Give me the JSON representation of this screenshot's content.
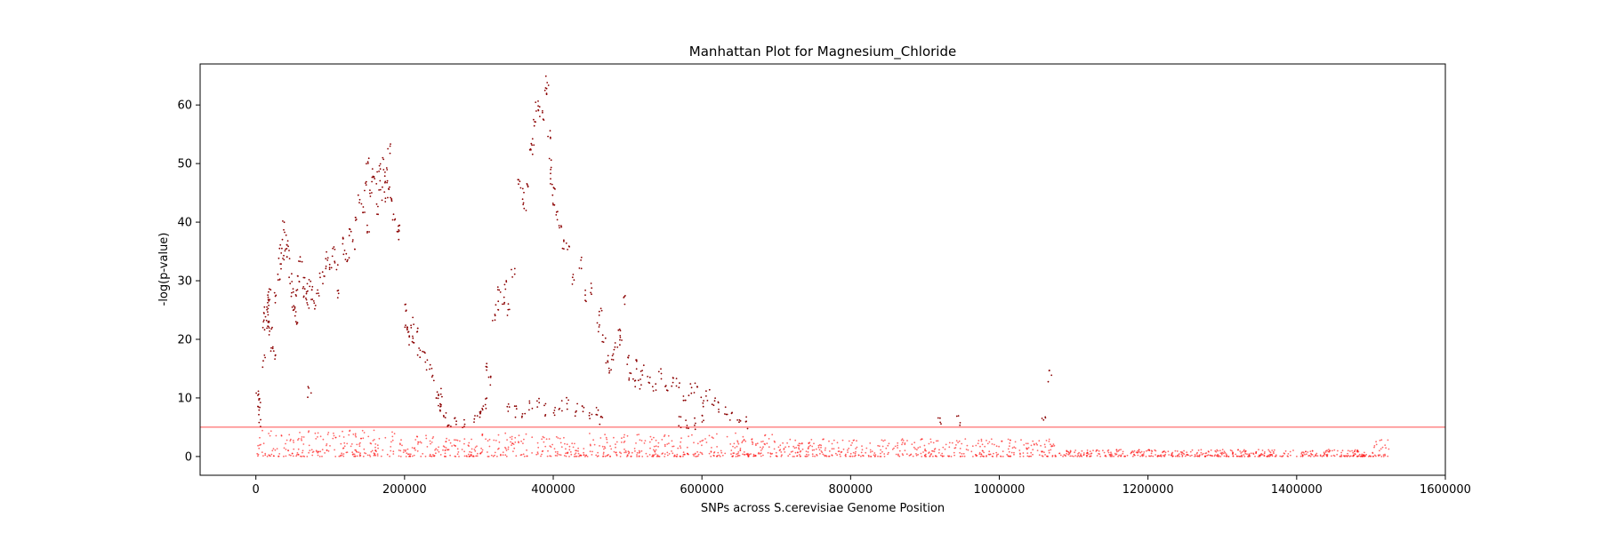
{
  "chart_data": {
    "type": "scatter",
    "title": "Manhattan Plot for Magnesium_Chloride",
    "xlabel": "SNPs across S.cerevisiae Genome Position",
    "ylabel": "-log(p-value)",
    "xlim": [
      -75000,
      1600000
    ],
    "ylim": [
      -3.2,
      67
    ],
    "xticks": [
      0,
      200000,
      400000,
      600000,
      800000,
      1000000,
      1200000,
      1400000,
      1600000
    ],
    "xtick_labels": [
      "0",
      "200000",
      "400000",
      "600000",
      "800000",
      "1000000",
      "1200000",
      "1400000",
      "1600000"
    ],
    "yticks": [
      0,
      10,
      20,
      30,
      40,
      50,
      60
    ],
    "ytick_labels": [
      "0",
      "10",
      "20",
      "30",
      "40",
      "50",
      "60"
    ],
    "threshold": 5,
    "colors": {
      "background_points": "#ff0000",
      "significant_points": "#8b0000",
      "threshold_line": "#ff0000"
    },
    "significant_points": [
      [
        2000,
        11.2
      ],
      [
        3000,
        9.2
      ],
      [
        4000,
        8.8
      ],
      [
        6000,
        6.1
      ],
      [
        10000,
        16.2
      ],
      [
        12000,
        22.5
      ],
      [
        13000,
        25.0
      ],
      [
        14000,
        24.0
      ],
      [
        15000,
        26.5
      ],
      [
        16000,
        23.0
      ],
      [
        17000,
        25.5
      ],
      [
        18000,
        27.5
      ],
      [
        19000,
        22.0
      ],
      [
        20000,
        21.5
      ],
      [
        22000,
        19.0
      ],
      [
        24000,
        17.0
      ],
      [
        27000,
        27.0
      ],
      [
        30000,
        31.0
      ],
      [
        32000,
        33.0
      ],
      [
        34000,
        36.5
      ],
      [
        36000,
        34.0
      ],
      [
        38000,
        39.3
      ],
      [
        40000,
        35.0
      ],
      [
        42000,
        36.8
      ],
      [
        44000,
        34.5
      ],
      [
        46000,
        30.5
      ],
      [
        48000,
        28.0
      ],
      [
        50000,
        26.0
      ],
      [
        52000,
        24.5
      ],
      [
        54000,
        22.5
      ],
      [
        56000,
        28.0
      ],
      [
        58000,
        30.0
      ],
      [
        60000,
        33.0
      ],
      [
        64000,
        29.5
      ],
      [
        66000,
        27.0
      ],
      [
        68000,
        28.5
      ],
      [
        70000,
        26.0
      ],
      [
        72000,
        11.0
      ],
      [
        74000,
        30.0
      ],
      [
        76000,
        27.5
      ],
      [
        80000,
        25.5
      ],
      [
        84000,
        28.0
      ],
      [
        88000,
        30.5
      ],
      [
        92000,
        31.5
      ],
      [
        96000,
        34.5
      ],
      [
        100000,
        32.5
      ],
      [
        104000,
        35.0
      ],
      [
        108000,
        33.0
      ],
      [
        112000,
        27.5
      ],
      [
        116000,
        37.0
      ],
      [
        120000,
        34.5
      ],
      [
        124000,
        33.5
      ],
      [
        128000,
        38.0
      ],
      [
        132000,
        36.0
      ],
      [
        136000,
        41.0
      ],
      [
        140000,
        44.0
      ],
      [
        144000,
        42.5
      ],
      [
        148000,
        46.0
      ],
      [
        150000,
        50.0
      ],
      [
        152000,
        39.0
      ],
      [
        155000,
        45.5
      ],
      [
        158000,
        48.0
      ],
      [
        160000,
        47.0
      ],
      [
        162000,
        42.0
      ],
      [
        165000,
        49.0
      ],
      [
        168000,
        46.5
      ],
      [
        170000,
        50.0
      ],
      [
        172000,
        44.5
      ],
      [
        174000,
        48.5
      ],
      [
        176000,
        47.5
      ],
      [
        178000,
        45.0
      ],
      [
        180000,
        52.7
      ],
      [
        182000,
        43.5
      ],
      [
        186000,
        41.0
      ],
      [
        190000,
        38.0
      ],
      [
        194000,
        39.0
      ],
      [
        200000,
        25.0
      ],
      [
        203000,
        22.0
      ],
      [
        206000,
        21.5
      ],
      [
        208000,
        20.0
      ],
      [
        210000,
        23.0
      ],
      [
        213000,
        19.5
      ],
      [
        216000,
        21.0
      ],
      [
        220000,
        18.0
      ],
      [
        226000,
        17.0
      ],
      [
        232000,
        15.5
      ],
      [
        238000,
        14.0
      ],
      [
        244000,
        11.0
      ],
      [
        246000,
        9.5
      ],
      [
        248000,
        10.5
      ],
      [
        250000,
        8.5
      ],
      [
        254000,
        7.0
      ],
      [
        260000,
        6.0
      ],
      [
        268000,
        5.5
      ],
      [
        280000,
        5.8
      ],
      [
        296000,
        6.5
      ],
      [
        300000,
        7.5
      ],
      [
        304000,
        8.5
      ],
      [
        308000,
        9.0
      ],
      [
        312000,
        15.0
      ],
      [
        314000,
        13.0
      ],
      [
        320000,
        24.0
      ],
      [
        324000,
        26.0
      ],
      [
        328000,
        28.5
      ],
      [
        332000,
        27.0
      ],
      [
        336000,
        29.5
      ],
      [
        340000,
        25.0
      ],
      [
        346000,
        31.0
      ],
      [
        354000,
        47.5
      ],
      [
        358000,
        45.0
      ],
      [
        362000,
        43.0
      ],
      [
        366000,
        46.5
      ],
      [
        370000,
        52.0
      ],
      [
        372000,
        54.0
      ],
      [
        376000,
        57.5
      ],
      [
        378000,
        60.0
      ],
      [
        382000,
        59.0
      ],
      [
        386000,
        58.0
      ],
      [
        390000,
        62.0
      ],
      [
        392000,
        64.0
      ],
      [
        394000,
        55.0
      ],
      [
        396000,
        50.0
      ],
      [
        398000,
        47.5
      ],
      [
        400000,
        45.5
      ],
      [
        402000,
        43.0
      ],
      [
        406000,
        41.0
      ],
      [
        410000,
        39.5
      ],
      [
        414000,
        36.0
      ],
      [
        420000,
        35.5
      ],
      [
        428000,
        30.0
      ],
      [
        436000,
        33.0
      ],
      [
        444000,
        27.5
      ],
      [
        452000,
        28.5
      ],
      [
        460000,
        22.0
      ],
      [
        464000,
        25.0
      ],
      [
        468000,
        20.0
      ],
      [
        472000,
        17.0
      ],
      [
        476000,
        14.5
      ],
      [
        480000,
        16.5
      ],
      [
        484000,
        18.5
      ],
      [
        488000,
        21.0
      ],
      [
        492000,
        20.0
      ],
      [
        496000,
        26.5
      ],
      [
        500000,
        16.5
      ],
      [
        504000,
        14.0
      ],
      [
        508000,
        13.0
      ],
      [
        512000,
        15.5
      ],
      [
        516000,
        12.5
      ],
      [
        520000,
        14.5
      ],
      [
        528000,
        13.5
      ],
      [
        536000,
        12.0
      ],
      [
        544000,
        14.0
      ],
      [
        552000,
        11.5
      ],
      [
        560000,
        13.0
      ],
      [
        568000,
        12.5
      ],
      [
        576000,
        10.5
      ],
      [
        584000,
        11.5
      ],
      [
        592000,
        12.0
      ],
      [
        600000,
        9.5
      ],
      [
        608000,
        10.5
      ],
      [
        616000,
        9.0
      ],
      [
        624000,
        8.5
      ],
      [
        632000,
        7.5
      ],
      [
        640000,
        7.0
      ],
      [
        650000,
        5.5
      ],
      [
        660000,
        5.8
      ],
      [
        340000,
        8.0
      ],
      [
        350000,
        7.5
      ],
      [
        360000,
        7.0
      ],
      [
        370000,
        8.5
      ],
      [
        380000,
        9.0
      ],
      [
        390000,
        8.0
      ],
      [
        400000,
        7.5
      ],
      [
        410000,
        8.5
      ],
      [
        420000,
        9.0
      ],
      [
        430000,
        8.0
      ],
      [
        440000,
        8.5
      ],
      [
        450000,
        7.5
      ],
      [
        458000,
        8.0
      ],
      [
        465000,
        6.5
      ],
      [
        570000,
        5.8
      ],
      [
        580000,
        5.5
      ],
      [
        590000,
        5.6
      ],
      [
        600000,
        6.0
      ],
      [
        920000,
        6.0
      ],
      [
        945000,
        6.0
      ],
      [
        1060000,
        6.0
      ],
      [
        1068000,
        13.8
      ]
    ],
    "noise_bands": [
      {
        "from": 0,
        "to": 200000,
        "max": 4.5
      },
      {
        "from": 200000,
        "to": 700000,
        "max": 4.0
      },
      {
        "from": 700000,
        "to": 1080000,
        "max": 3.0
      },
      {
        "from": 1080000,
        "to": 1500000,
        "max": 1.2
      },
      {
        "from": 1500000,
        "to": 1525000,
        "max": 3.0
      }
    ]
  }
}
